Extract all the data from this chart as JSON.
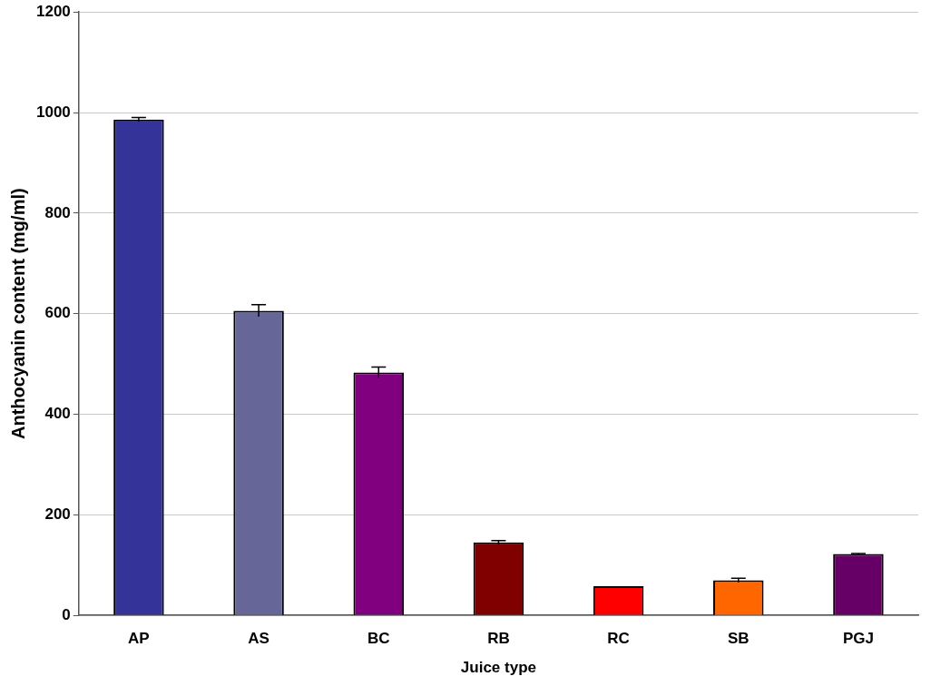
{
  "chart_data": {
    "type": "bar",
    "xlabel": "Juice type",
    "ylabel": "Anthocyanin content (mg/ml)",
    "categories": [
      "AP",
      "AS",
      "BC",
      "RB",
      "RC",
      "SB",
      "PGJ"
    ],
    "values": [
      986,
      606,
      483,
      145,
      58,
      70,
      122
    ],
    "colors": [
      "#333399",
      "#666699",
      "#800080",
      "#800000",
      "#ff0000",
      "#ff6600",
      "#660066"
    ],
    "errors": [
      4,
      12,
      11,
      4,
      null,
      4,
      1
    ],
    "ylim": [
      0,
      1200
    ],
    "yticks": [
      0,
      200,
      400,
      600,
      800,
      1000,
      1200
    ],
    "grid": "y",
    "legend": false
  }
}
